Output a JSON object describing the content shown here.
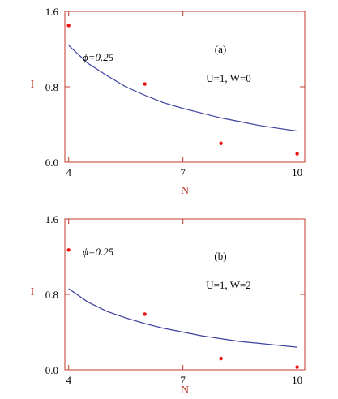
{
  "colors": {
    "axis": "#c0392b",
    "points": "#e8110f",
    "curve": "#3b3f9e",
    "tick_text": "#000000"
  },
  "chart_data": [
    {
      "type": "scatter",
      "panel_label": "(a)",
      "xlabel": "N",
      "ylabel": "I",
      "xlim": [
        3.9,
        10.2
      ],
      "ylim": [
        0.0,
        1.6
      ],
      "xticks": [
        4,
        7,
        10
      ],
      "xtick_labels": [
        "4",
        "7",
        "10"
      ],
      "yticks": [
        0.0,
        0.8,
        1.6
      ],
      "ytick_labels": [
        "0.0",
        "0.8",
        "1.6"
      ],
      "annotations": {
        "phi": "ϕ=0.25",
        "params": "U=1, W=0"
      },
      "series": [
        {
          "kind": "points",
          "x": [
            4,
            6,
            8,
            10
          ],
          "y": [
            1.45,
            0.83,
            0.2,
            0.09
          ]
        },
        {
          "kind": "curve",
          "x": [
            4,
            4.5,
            5,
            5.5,
            6,
            6.5,
            7,
            7.5,
            8,
            8.5,
            9,
            9.5,
            10
          ],
          "y": [
            1.24,
            1.05,
            0.92,
            0.8,
            0.71,
            0.63,
            0.57,
            0.52,
            0.47,
            0.43,
            0.39,
            0.36,
            0.33
          ]
        }
      ]
    },
    {
      "type": "scatter",
      "panel_label": "(b)",
      "xlabel": "N",
      "ylabel": "I",
      "xlim": [
        3.9,
        10.2
      ],
      "ylim": [
        0.0,
        1.6
      ],
      "xticks": [
        4,
        7,
        10
      ],
      "xtick_labels": [
        "4",
        "7",
        "10"
      ],
      "yticks": [
        0.0,
        0.8,
        1.6
      ],
      "ytick_labels": [
        "0.0",
        "0.8",
        "1.6"
      ],
      "annotations": {
        "phi": "ϕ=0.25",
        "params": "U=1, W=2"
      },
      "series": [
        {
          "kind": "points",
          "x": [
            4,
            6,
            8,
            10
          ],
          "y": [
            1.27,
            0.59,
            0.12,
            0.03
          ]
        },
        {
          "kind": "curve",
          "x": [
            4,
            4.5,
            5,
            5.5,
            6,
            6.5,
            7,
            7.5,
            8,
            8.5,
            9,
            9.5,
            10
          ],
          "y": [
            0.86,
            0.72,
            0.62,
            0.55,
            0.49,
            0.44,
            0.4,
            0.36,
            0.33,
            0.3,
            0.28,
            0.26,
            0.24
          ]
        }
      ]
    }
  ]
}
